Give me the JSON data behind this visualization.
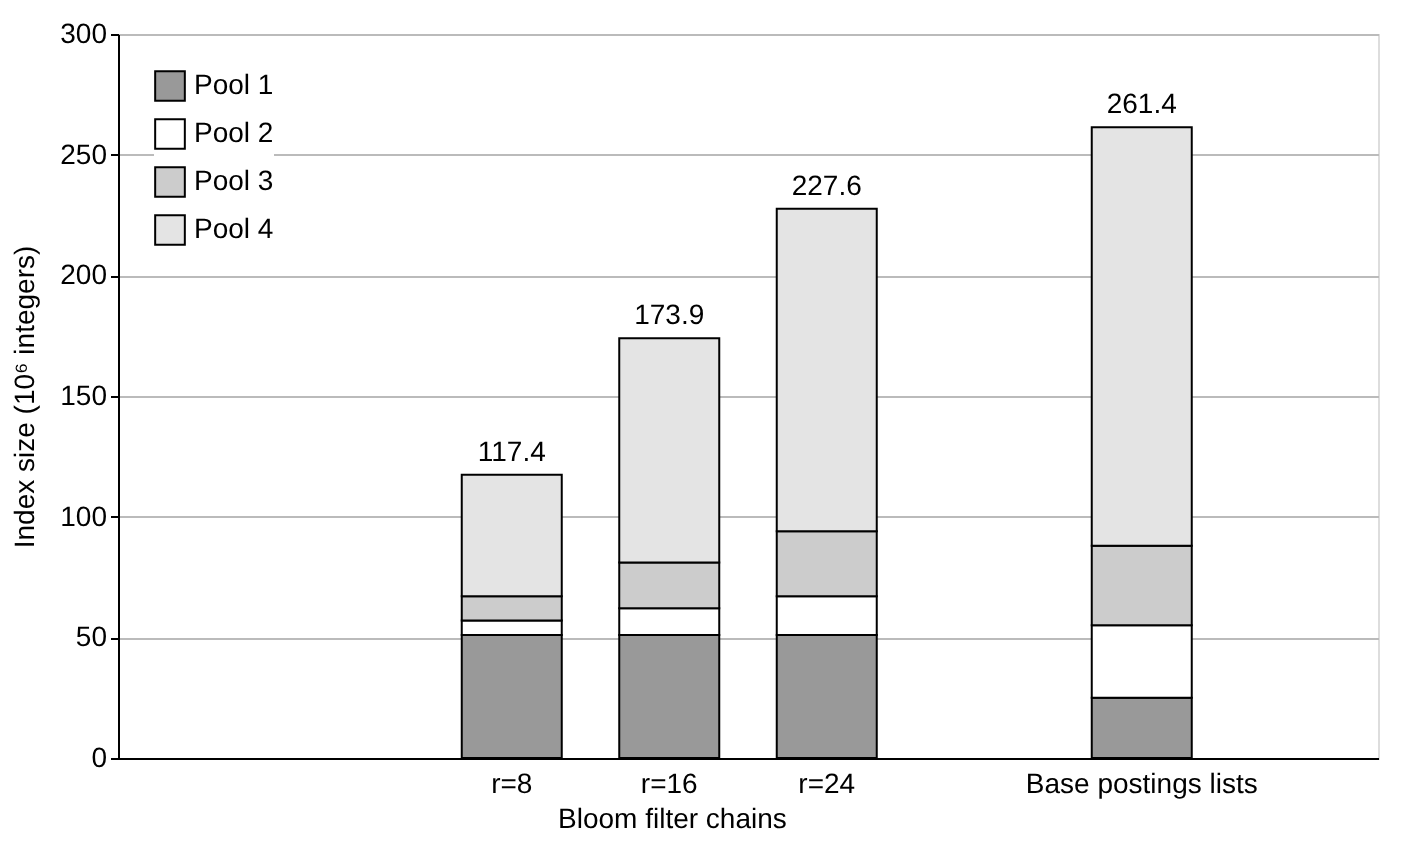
{
  "chart_data": {
    "type": "bar",
    "stacked": true,
    "ylabel": "Index size (10⁶ integers)",
    "categories": [
      null,
      null,
      "r=8",
      "r=16",
      "r=24",
      null,
      "Base postings lists",
      null
    ],
    "series": [
      {
        "name": "Pool 1",
        "color": "#999999",
        "values": [
          null,
          null,
          51,
          51,
          51,
          null,
          25,
          null
        ]
      },
      {
        "name": "Pool 2",
        "color": "#ffffff",
        "values": [
          null,
          null,
          6,
          11,
          16,
          null,
          30,
          null
        ]
      },
      {
        "name": "Pool 3",
        "color": "#cccccc",
        "values": [
          null,
          null,
          10,
          19,
          27,
          null,
          33,
          null
        ]
      },
      {
        "name": "Pool 4",
        "color": "#e4e4e4",
        "values": [
          null,
          null,
          50.4,
          92.9,
          133.6,
          null,
          173.4,
          null
        ]
      }
    ],
    "totals": [
      null,
      null,
      "117.4",
      "173.9",
      "227.6",
      null,
      "261.4",
      null
    ],
    "annotations": [
      "Bloom filter chains"
    ],
    "ylim": [
      0,
      300
    ],
    "yticks": [
      0,
      50,
      100,
      150,
      200,
      250,
      300
    ],
    "grid": "y",
    "legend": "top left"
  }
}
